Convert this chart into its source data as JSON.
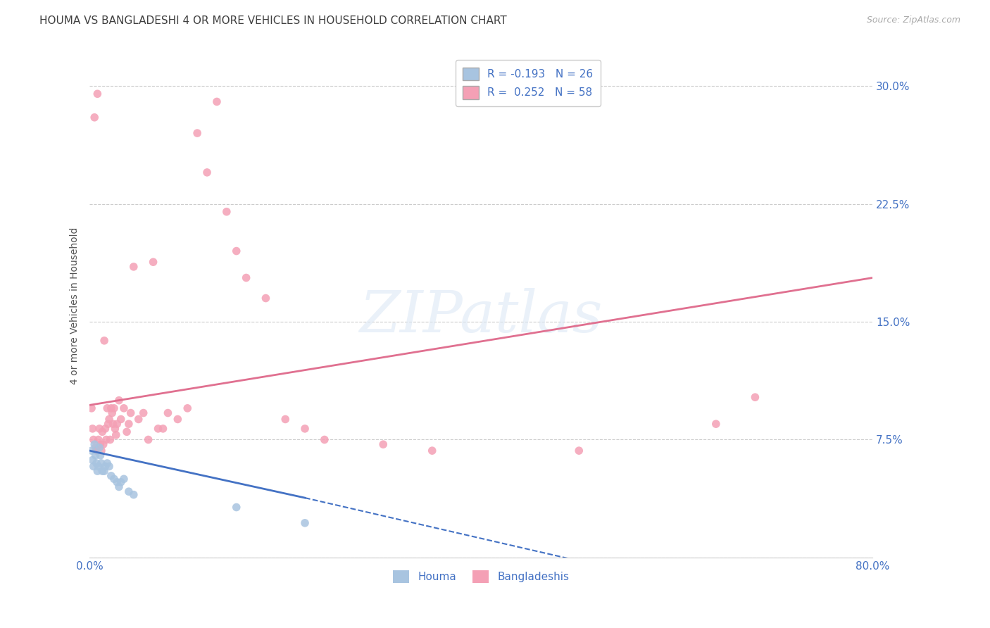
{
  "title": "HOUMA VS BANGLADESHI 4 OR MORE VEHICLES IN HOUSEHOLD CORRELATION CHART",
  "source": "Source: ZipAtlas.com",
  "ylabel": "4 or more Vehicles in Household",
  "xlim": [
    0.0,
    0.8
  ],
  "ylim": [
    0.0,
    0.32
  ],
  "yticks": [
    0.0,
    0.075,
    0.15,
    0.225,
    0.3
  ],
  "ytick_labels": [
    "",
    "7.5%",
    "15.0%",
    "22.5%",
    "30.0%"
  ],
  "xticks": [
    0.0,
    0.1,
    0.2,
    0.3,
    0.4,
    0.5,
    0.6,
    0.7,
    0.8
  ],
  "xtick_labels": [
    "0.0%",
    "",
    "",
    "",
    "",
    "",
    "",
    "",
    "80.0%"
  ],
  "houma_color": "#a8c4e0",
  "bangladeshi_color": "#f4a0b5",
  "houma_line_color": "#4472c4",
  "bangladeshi_line_color": "#e07090",
  "R_houma": -0.193,
  "N_houma": 26,
  "R_bangladeshi": 0.252,
  "N_bangladeshi": 58,
  "houma_x": [
    0.002,
    0.003,
    0.004,
    0.005,
    0.006,
    0.007,
    0.008,
    0.009,
    0.01,
    0.011,
    0.012,
    0.013,
    0.015,
    0.016,
    0.018,
    0.02,
    0.022,
    0.025,
    0.028,
    0.03,
    0.032,
    0.035,
    0.04,
    0.045,
    0.15,
    0.22
  ],
  "houma_y": [
    0.068,
    0.062,
    0.058,
    0.072,
    0.065,
    0.06,
    0.055,
    0.058,
    0.07,
    0.065,
    0.06,
    0.055,
    0.055,
    0.058,
    0.06,
    0.058,
    0.052,
    0.05,
    0.048,
    0.045,
    0.048,
    0.05,
    0.042,
    0.04,
    0.032,
    0.022
  ],
  "bangladeshi_x": [
    0.002,
    0.003,
    0.004,
    0.005,
    0.006,
    0.007,
    0.008,
    0.009,
    0.01,
    0.011,
    0.012,
    0.013,
    0.014,
    0.015,
    0.016,
    0.017,
    0.018,
    0.019,
    0.02,
    0.021,
    0.022,
    0.023,
    0.024,
    0.025,
    0.026,
    0.027,
    0.028,
    0.03,
    0.032,
    0.035,
    0.038,
    0.04,
    0.042,
    0.045,
    0.05,
    0.055,
    0.06,
    0.065,
    0.07,
    0.075,
    0.08,
    0.09,
    0.1,
    0.11,
    0.12,
    0.13,
    0.14,
    0.15,
    0.16,
    0.18,
    0.2,
    0.22,
    0.24,
    0.3,
    0.35,
    0.5,
    0.64,
    0.68
  ],
  "bangladeshi_y": [
    0.095,
    0.082,
    0.075,
    0.28,
    0.07,
    0.068,
    0.295,
    0.075,
    0.082,
    0.072,
    0.068,
    0.08,
    0.072,
    0.138,
    0.082,
    0.075,
    0.095,
    0.085,
    0.088,
    0.075,
    0.095,
    0.092,
    0.085,
    0.095,
    0.082,
    0.078,
    0.085,
    0.1,
    0.088,
    0.095,
    0.08,
    0.085,
    0.092,
    0.185,
    0.088,
    0.092,
    0.075,
    0.188,
    0.082,
    0.082,
    0.092,
    0.088,
    0.095,
    0.27,
    0.245,
    0.29,
    0.22,
    0.195,
    0.178,
    0.165,
    0.088,
    0.082,
    0.075,
    0.072,
    0.068,
    0.068,
    0.085,
    0.102
  ],
  "bang_line_x0": 0.0,
  "bang_line_y0": 0.097,
  "bang_line_x1": 0.8,
  "bang_line_y1": 0.178,
  "houma_line_solid_x0": 0.0,
  "houma_line_solid_y0": 0.068,
  "houma_line_solid_x1": 0.22,
  "houma_line_solid_y1": 0.038,
  "houma_line_dash_x0": 0.22,
  "houma_line_dash_y0": 0.038,
  "houma_line_dash_x1": 0.52,
  "houma_line_dash_y1": -0.005,
  "watermark": "ZIPatlas",
  "background_color": "#ffffff",
  "grid_color": "#cccccc",
  "axis_color": "#4472c4",
  "title_color": "#404040",
  "title_fontsize": 11,
  "label_fontsize": 10,
  "tick_fontsize": 11,
  "legend_fontsize": 11,
  "marker_size": 70
}
